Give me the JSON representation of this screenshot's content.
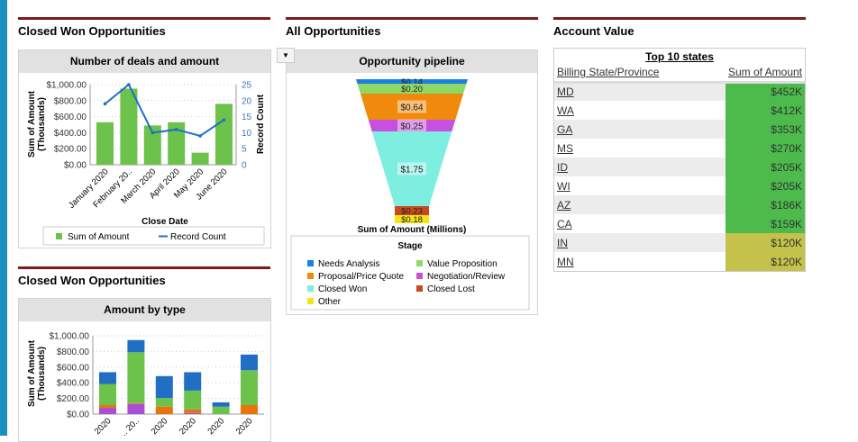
{
  "left_section": {
    "title": "Closed Won Opportunities"
  },
  "chart1": {
    "title": "Number of deals and amount",
    "xlabel": "Close Date",
    "ylabel": "Sum of Amount",
    "ylabel2": "(Thousands)",
    "y2label": "Record Count",
    "legend": [
      "Sum of Amount",
      "Record Count"
    ]
  },
  "left_section2": {
    "title": "Closed Won Opportunities"
  },
  "chart2": {
    "title": "Amount by type",
    "ylabel": "Sum of Amount",
    "ylabel2": "(Thousands)"
  },
  "middle_section": {
    "title": "All Opportunities"
  },
  "funnel": {
    "title": "Opportunity pipeline",
    "xlabel": "Sum of Amount (Millions)",
    "legend_title": "Stage"
  },
  "right_section": {
    "title": "Account Value"
  },
  "table": {
    "title": "Top 10 states",
    "col1": "Billing State/Province",
    "col2": "Sum of Amount",
    "rows": [
      {
        "state": "MD",
        "amount": "$452K",
        "color": "#4cbb4c"
      },
      {
        "state": "WA",
        "amount": "$412K",
        "color": "#4cbb4c"
      },
      {
        "state": "GA",
        "amount": "$353K",
        "color": "#4cbb4c"
      },
      {
        "state": "MS",
        "amount": "$270K",
        "color": "#4cbb4c"
      },
      {
        "state": "ID",
        "amount": "$205K",
        "color": "#4cbb4c"
      },
      {
        "state": "WI",
        "amount": "$205K",
        "color": "#4cbb4c"
      },
      {
        "state": "AZ",
        "amount": "$186K",
        "color": "#4cbb4c"
      },
      {
        "state": "CA",
        "amount": "$159K",
        "color": "#4cbb4c"
      },
      {
        "state": "IN",
        "amount": "$120K",
        "color": "#c4c24a"
      },
      {
        "state": "MN",
        "amount": "$120K",
        "color": "#c4c24a"
      }
    ]
  },
  "chart_data": [
    {
      "type": "bar",
      "title": "Number of deals and amount",
      "categories": [
        "January 2020",
        "February 20..",
        "March 2020",
        "April 2020",
        "May 2020",
        "June 2020"
      ],
      "series": [
        {
          "name": "Sum of Amount",
          "type": "bar",
          "axis": "left",
          "color": "#6cc24a",
          "values": [
            530,
            950,
            490,
            530,
            150,
            760
          ]
        },
        {
          "name": "Record Count",
          "type": "line",
          "axis": "right",
          "color": "#1f6fc5",
          "values": [
            19,
            25,
            10,
            11,
            9,
            14
          ]
        }
      ],
      "yticks": [
        "$0.00",
        "$200.00",
        "$400.00",
        "$600.00",
        "$800.00",
        "$1,000.00"
      ],
      "ylim": [
        0,
        1000
      ],
      "y2ticks": [
        "0",
        "5",
        "10",
        "15",
        "20",
        "25"
      ],
      "y2lim": [
        0,
        25
      ],
      "xlabel": "Close Date",
      "ylabel": "Sum of Amount (Thousands)",
      "y2label": "Record Count",
      "legend": "bottom"
    },
    {
      "type": "bar",
      "stacked": true,
      "title": "Amount by type",
      "categories": [
        "2020",
        ".. 20..",
        "2020",
        "2020",
        "2020",
        "2020"
      ],
      "series": [
        {
          "color": "#a94fd6",
          "values": [
            80,
            130,
            0,
            15,
            0,
            0
          ]
        },
        {
          "color": "#e8740c",
          "values": [
            35,
            10,
            95,
            45,
            0,
            115
          ]
        },
        {
          "color": "#6cc24a",
          "values": [
            270,
            650,
            110,
            240,
            95,
            445
          ]
        },
        {
          "color": "#1f6fc5",
          "values": [
            150,
            155,
            280,
            235,
            55,
            200
          ]
        }
      ],
      "yticks": [
        "$0.00",
        "$200.00",
        "$400.00",
        "$600.00",
        "$800.00",
        "$1,000.00"
      ],
      "ylim": [
        0,
        1000
      ],
      "ylabel": "Sum of Amount (Thousands)"
    },
    {
      "type": "funnel",
      "title": "Opportunity pipeline",
      "xlabel": "Sum of Amount (Millions)",
      "stages": [
        {
          "name": "Needs Analysis",
          "value": 0.14,
          "label": "$0.14",
          "color": "#1a7fe0"
        },
        {
          "name": "Value Proposition",
          "value": 0.2,
          "label": "$0.20",
          "color": "#8ed868"
        },
        {
          "name": "Proposal/Price Quote",
          "value": 0.64,
          "label": "$0.64",
          "color": "#f08a0c"
        },
        {
          "name": "Negotiation/Review",
          "value": 0.25,
          "label": "$0.25",
          "color": "#c750e0"
        },
        {
          "name": "Closed Won",
          "value": 1.75,
          "label": "$1.75",
          "color": "#7eeee0"
        },
        {
          "name": "Closed Lost",
          "value": 0.23,
          "label": "$0.23",
          "color": "#c8491e"
        },
        {
          "name": "Other",
          "value": 0.18,
          "label": "$0.18",
          "color": "#f3e51a"
        }
      ],
      "legend_order": [
        "Needs Analysis",
        "Value Proposition",
        "Proposal/Price Quote",
        "Negotiation/Review",
        "Closed Won",
        "Closed Lost",
        "Other"
      ]
    }
  ]
}
